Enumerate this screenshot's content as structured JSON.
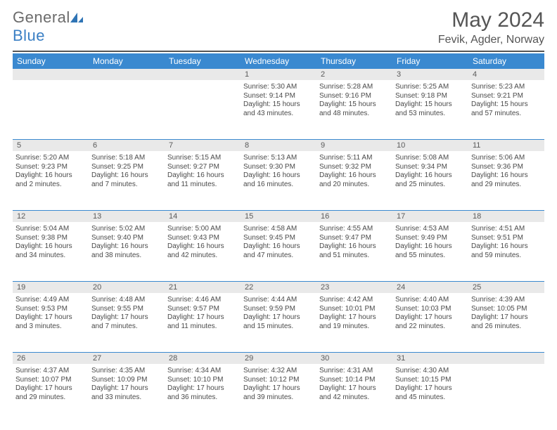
{
  "brand": {
    "word1": "General",
    "word2": "Blue"
  },
  "title": "May 2024",
  "location": "Fevik, Agder, Norway",
  "colors": {
    "header_bg": "#3a89d0",
    "daynum_bg": "#e9e9e9",
    "sep": "#3a89d0",
    "text": "#4a4a4a"
  },
  "day_headers": [
    "Sunday",
    "Monday",
    "Tuesday",
    "Wednesday",
    "Thursday",
    "Friday",
    "Saturday"
  ],
  "weeks": [
    [
      {
        "n": "",
        "sr": "",
        "ss": "",
        "dl": ""
      },
      {
        "n": "",
        "sr": "",
        "ss": "",
        "dl": ""
      },
      {
        "n": "",
        "sr": "",
        "ss": "",
        "dl": ""
      },
      {
        "n": "1",
        "sr": "Sunrise: 5:30 AM",
        "ss": "Sunset: 9:14 PM",
        "dl": "Daylight: 15 hours and 43 minutes."
      },
      {
        "n": "2",
        "sr": "Sunrise: 5:28 AM",
        "ss": "Sunset: 9:16 PM",
        "dl": "Daylight: 15 hours and 48 minutes."
      },
      {
        "n": "3",
        "sr": "Sunrise: 5:25 AM",
        "ss": "Sunset: 9:18 PM",
        "dl": "Daylight: 15 hours and 53 minutes."
      },
      {
        "n": "4",
        "sr": "Sunrise: 5:23 AM",
        "ss": "Sunset: 9:21 PM",
        "dl": "Daylight: 15 hours and 57 minutes."
      }
    ],
    [
      {
        "n": "5",
        "sr": "Sunrise: 5:20 AM",
        "ss": "Sunset: 9:23 PM",
        "dl": "Daylight: 16 hours and 2 minutes."
      },
      {
        "n": "6",
        "sr": "Sunrise: 5:18 AM",
        "ss": "Sunset: 9:25 PM",
        "dl": "Daylight: 16 hours and 7 minutes."
      },
      {
        "n": "7",
        "sr": "Sunrise: 5:15 AM",
        "ss": "Sunset: 9:27 PM",
        "dl": "Daylight: 16 hours and 11 minutes."
      },
      {
        "n": "8",
        "sr": "Sunrise: 5:13 AM",
        "ss": "Sunset: 9:30 PM",
        "dl": "Daylight: 16 hours and 16 minutes."
      },
      {
        "n": "9",
        "sr": "Sunrise: 5:11 AM",
        "ss": "Sunset: 9:32 PM",
        "dl": "Daylight: 16 hours and 20 minutes."
      },
      {
        "n": "10",
        "sr": "Sunrise: 5:08 AM",
        "ss": "Sunset: 9:34 PM",
        "dl": "Daylight: 16 hours and 25 minutes."
      },
      {
        "n": "11",
        "sr": "Sunrise: 5:06 AM",
        "ss": "Sunset: 9:36 PM",
        "dl": "Daylight: 16 hours and 29 minutes."
      }
    ],
    [
      {
        "n": "12",
        "sr": "Sunrise: 5:04 AM",
        "ss": "Sunset: 9:38 PM",
        "dl": "Daylight: 16 hours and 34 minutes."
      },
      {
        "n": "13",
        "sr": "Sunrise: 5:02 AM",
        "ss": "Sunset: 9:40 PM",
        "dl": "Daylight: 16 hours and 38 minutes."
      },
      {
        "n": "14",
        "sr": "Sunrise: 5:00 AM",
        "ss": "Sunset: 9:43 PM",
        "dl": "Daylight: 16 hours and 42 minutes."
      },
      {
        "n": "15",
        "sr": "Sunrise: 4:58 AM",
        "ss": "Sunset: 9:45 PM",
        "dl": "Daylight: 16 hours and 47 minutes."
      },
      {
        "n": "16",
        "sr": "Sunrise: 4:55 AM",
        "ss": "Sunset: 9:47 PM",
        "dl": "Daylight: 16 hours and 51 minutes."
      },
      {
        "n": "17",
        "sr": "Sunrise: 4:53 AM",
        "ss": "Sunset: 9:49 PM",
        "dl": "Daylight: 16 hours and 55 minutes."
      },
      {
        "n": "18",
        "sr": "Sunrise: 4:51 AM",
        "ss": "Sunset: 9:51 PM",
        "dl": "Daylight: 16 hours and 59 minutes."
      }
    ],
    [
      {
        "n": "19",
        "sr": "Sunrise: 4:49 AM",
        "ss": "Sunset: 9:53 PM",
        "dl": "Daylight: 17 hours and 3 minutes."
      },
      {
        "n": "20",
        "sr": "Sunrise: 4:48 AM",
        "ss": "Sunset: 9:55 PM",
        "dl": "Daylight: 17 hours and 7 minutes."
      },
      {
        "n": "21",
        "sr": "Sunrise: 4:46 AM",
        "ss": "Sunset: 9:57 PM",
        "dl": "Daylight: 17 hours and 11 minutes."
      },
      {
        "n": "22",
        "sr": "Sunrise: 4:44 AM",
        "ss": "Sunset: 9:59 PM",
        "dl": "Daylight: 17 hours and 15 minutes."
      },
      {
        "n": "23",
        "sr": "Sunrise: 4:42 AM",
        "ss": "Sunset: 10:01 PM",
        "dl": "Daylight: 17 hours and 19 minutes."
      },
      {
        "n": "24",
        "sr": "Sunrise: 4:40 AM",
        "ss": "Sunset: 10:03 PM",
        "dl": "Daylight: 17 hours and 22 minutes."
      },
      {
        "n": "25",
        "sr": "Sunrise: 4:39 AM",
        "ss": "Sunset: 10:05 PM",
        "dl": "Daylight: 17 hours and 26 minutes."
      }
    ],
    [
      {
        "n": "26",
        "sr": "Sunrise: 4:37 AM",
        "ss": "Sunset: 10:07 PM",
        "dl": "Daylight: 17 hours and 29 minutes."
      },
      {
        "n": "27",
        "sr": "Sunrise: 4:35 AM",
        "ss": "Sunset: 10:09 PM",
        "dl": "Daylight: 17 hours and 33 minutes."
      },
      {
        "n": "28",
        "sr": "Sunrise: 4:34 AM",
        "ss": "Sunset: 10:10 PM",
        "dl": "Daylight: 17 hours and 36 minutes."
      },
      {
        "n": "29",
        "sr": "Sunrise: 4:32 AM",
        "ss": "Sunset: 10:12 PM",
        "dl": "Daylight: 17 hours and 39 minutes."
      },
      {
        "n": "30",
        "sr": "Sunrise: 4:31 AM",
        "ss": "Sunset: 10:14 PM",
        "dl": "Daylight: 17 hours and 42 minutes."
      },
      {
        "n": "31",
        "sr": "Sunrise: 4:30 AM",
        "ss": "Sunset: 10:15 PM",
        "dl": "Daylight: 17 hours and 45 minutes."
      },
      {
        "n": "",
        "sr": "",
        "ss": "",
        "dl": ""
      }
    ]
  ]
}
